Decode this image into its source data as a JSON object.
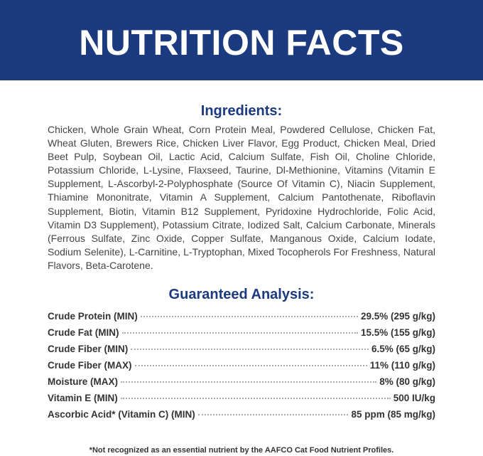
{
  "header": {
    "title": "NUTRITION FACTS"
  },
  "ingredients": {
    "heading": "Ingredients:",
    "text": "Chicken, Whole Grain Wheat, Corn Protein Meal, Powdered Cellulose, Chicken Fat, Wheat Gluten, Brewers Rice, Chicken Liver Flavor, Egg Product, Chicken Meal, Dried Beet Pulp, Soybean Oil, Lactic Acid, Calcium Sulfate, Fish Oil, Choline Chloride, Potassium Chloride, L-Lysine, Flaxseed, Taurine, Dl-Methionine, Vitamins (Vitamin E Supplement, L-Ascorbyl-2-Polyphosphate (Source Of Vitamin C), Niacin Supplement, Thiamine Mononitrate, Vitamin A Supplement, Calcium Pantothenate, Riboflavin Supplement, Biotin, Vitamin B12 Supplement, Pyridoxine Hydrochloride, Folic Acid, Vitamin D3 Supplement), Potassium Citrate, Iodized Salt, Calcium Carbonate, Minerals (Ferrous Sulfate, Zinc Oxide, Copper Sulfate, Manganous Oxide, Calcium Iodate, Sodium Selenite), L-Carnitine, L-Tryptophan, Mixed Tocopherols For Freshness, Natural Flavors, Beta-Carotene."
  },
  "analysis": {
    "heading": "Guaranteed Analysis:",
    "rows": [
      [
        "Crude Protein (MIN)",
        "29.5% (295 g/kg)"
      ],
      [
        "Crude Fat (MIN)",
        "15.5% (155 g/kg)"
      ],
      [
        "Crude Fiber (MIN)",
        "6.5% (65 g/kg)"
      ],
      [
        "Crude Fiber (MAX)",
        "11% (110 g/kg)"
      ],
      [
        "Moisture (MAX)",
        "8% (80 g/kg)"
      ],
      [
        "Vitamin E (MIN)",
        "500 IU/kg"
      ],
      [
        "Ascorbic Acid* (Vitamin C) (MIN)",
        "85 ppm (85 mg/kg)"
      ]
    ]
  },
  "footnote": "*Not recognized as an essential nutrient by the AAFCO Cat Food Nutrient Profiles."
}
